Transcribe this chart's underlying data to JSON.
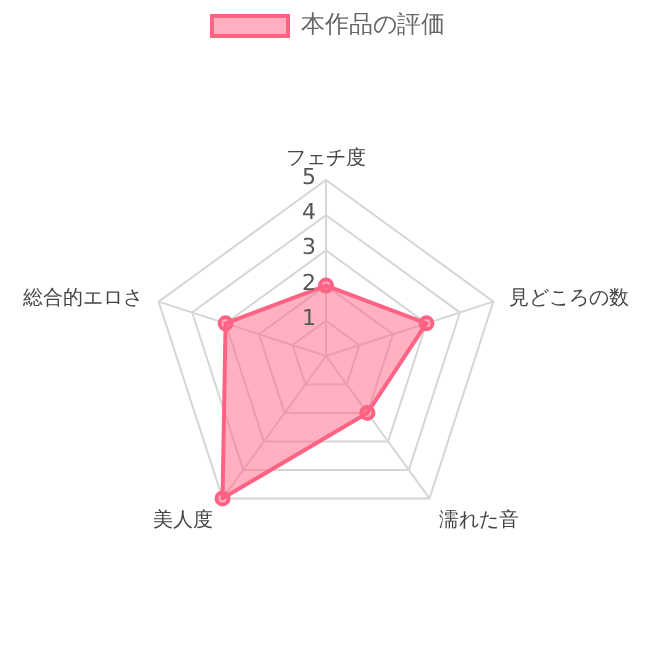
{
  "chart_data": {
    "type": "radar",
    "categories": [
      "フェチ度",
      "見どころの数",
      "濡れた音",
      "美人度",
      "総合的エロさ"
    ],
    "series": [
      {
        "name": "本作品の評価",
        "color": "#ff6384",
        "values": [
          2,
          3,
          2,
          5,
          3
        ]
      }
    ],
    "ylim": [
      0,
      5
    ],
    "yticks": [
      1,
      2,
      3,
      4,
      5
    ],
    "grid": true,
    "legend": "top",
    "marker": "circle"
  }
}
